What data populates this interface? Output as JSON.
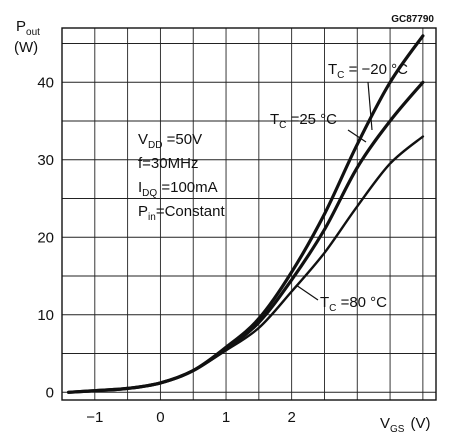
{
  "chart_data": {
    "type": "line",
    "figure_code": "GC87790",
    "ylabel": {
      "main": "P",
      "sub": "out",
      "unit": "(W)"
    },
    "xlabel": {
      "main": "V",
      "sub": "GS",
      "unit": "(V)"
    },
    "xlim": [
      -1.5,
      4.2
    ],
    "ylim": [
      -1,
      47
    ],
    "x_ticks": [
      -1,
      0,
      1,
      2
    ],
    "y_ticks": [
      0,
      10,
      20,
      30,
      40
    ],
    "grid": true,
    "conditions": {
      "vdd": {
        "main": "V",
        "sub": "DD",
        "value": " =50V"
      },
      "freq": "f=30MHz",
      "idq": {
        "main": "I",
        "sub": "DQ",
        "value": " =100mA"
      },
      "pin": {
        "main": "P",
        "sub": "in",
        "value": "=Constant"
      }
    },
    "series": [
      {
        "name": "TC = -20 °C",
        "label": {
          "main": "T",
          "sub": "C",
          "value": " = −20 °C"
        },
        "x": [
          -1.4,
          -1.0,
          -0.5,
          0.0,
          0.5,
          1.0,
          1.5,
          2.0,
          2.5,
          3.0,
          3.5,
          4.0
        ],
        "y": [
          0,
          0.2,
          0.5,
          1.2,
          2.8,
          5.8,
          9.5,
          15.5,
          23.0,
          32.0,
          40.0,
          46.0
        ]
      },
      {
        "name": "TC = 25 °C",
        "label": {
          "main": "T",
          "sub": "C",
          "value": " =25 °C"
        },
        "x": [
          -1.4,
          -1.0,
          -0.5,
          0.0,
          0.5,
          1.0,
          1.5,
          2.0,
          2.5,
          3.0,
          3.5,
          4.0
        ],
        "y": [
          0,
          0.2,
          0.5,
          1.2,
          2.8,
          5.6,
          9.0,
          14.5,
          21.0,
          29.0,
          35.0,
          40.0
        ]
      },
      {
        "name": "TC = 80 °C",
        "label": {
          "main": "T",
          "sub": "C",
          "value": " =80 °C"
        },
        "x": [
          -1.4,
          -1.0,
          -0.5,
          0.0,
          0.5,
          1.0,
          1.5,
          2.0,
          2.5,
          3.0,
          3.5,
          4.0
        ],
        "y": [
          0,
          0.2,
          0.5,
          1.2,
          2.8,
          5.4,
          8.3,
          13.0,
          18.0,
          24.0,
          29.5,
          33.0
        ]
      }
    ]
  }
}
